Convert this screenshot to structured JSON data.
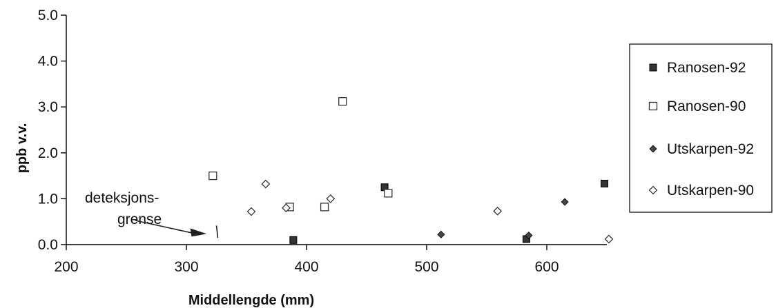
{
  "chart_data": {
    "type": "scatter",
    "title": "",
    "xlabel": "Middellengde (mm)",
    "ylabel": "ppb v.v.",
    "xlim": [
      200,
      650
    ],
    "ylim": [
      0,
      5
    ],
    "xticks": [
      "200",
      "300",
      "400",
      "500",
      "600"
    ],
    "xtick_values": [
      200,
      300,
      400,
      500,
      600
    ],
    "yticks": [
      "0.0",
      "1.0",
      "2.0",
      "3.0",
      "4.0",
      "5.0"
    ],
    "ytick_values": [
      0,
      1,
      2,
      3,
      4,
      5
    ],
    "grid": false,
    "legend_position": "right",
    "series": [
      {
        "name": "Ranosen-92",
        "marker": "filled-square",
        "color": "#333333",
        "points": [
          [
            389,
            0.1
          ],
          [
            465,
            1.25
          ],
          [
            583,
            0.12
          ],
          [
            648,
            1.33
          ]
        ]
      },
      {
        "name": "Ranosen-90",
        "marker": "open-square",
        "color": "#333333",
        "points": [
          [
            322,
            1.5
          ],
          [
            386,
            0.82
          ],
          [
            415,
            0.82
          ],
          [
            430,
            3.12
          ],
          [
            468,
            1.12
          ]
        ]
      },
      {
        "name": "Utskarpen-92",
        "marker": "filled-diamond",
        "color": "#444444",
        "points": [
          [
            512,
            0.22
          ],
          [
            585,
            0.2
          ],
          [
            615,
            0.93
          ]
        ]
      },
      {
        "name": "Utskarpen-90",
        "marker": "open-diamond",
        "color": "#333333",
        "points": [
          [
            354,
            0.72
          ],
          [
            366,
            1.32
          ],
          [
            383,
            0.8
          ],
          [
            420,
            1.0
          ],
          [
            559,
            0.73
          ],
          [
            657,
            0.12
          ]
        ]
      }
    ],
    "annotation": {
      "text_line1": "deteksjons-",
      "text_line2": "grense",
      "arrow_to": [
        325,
        0.25
      ]
    }
  }
}
